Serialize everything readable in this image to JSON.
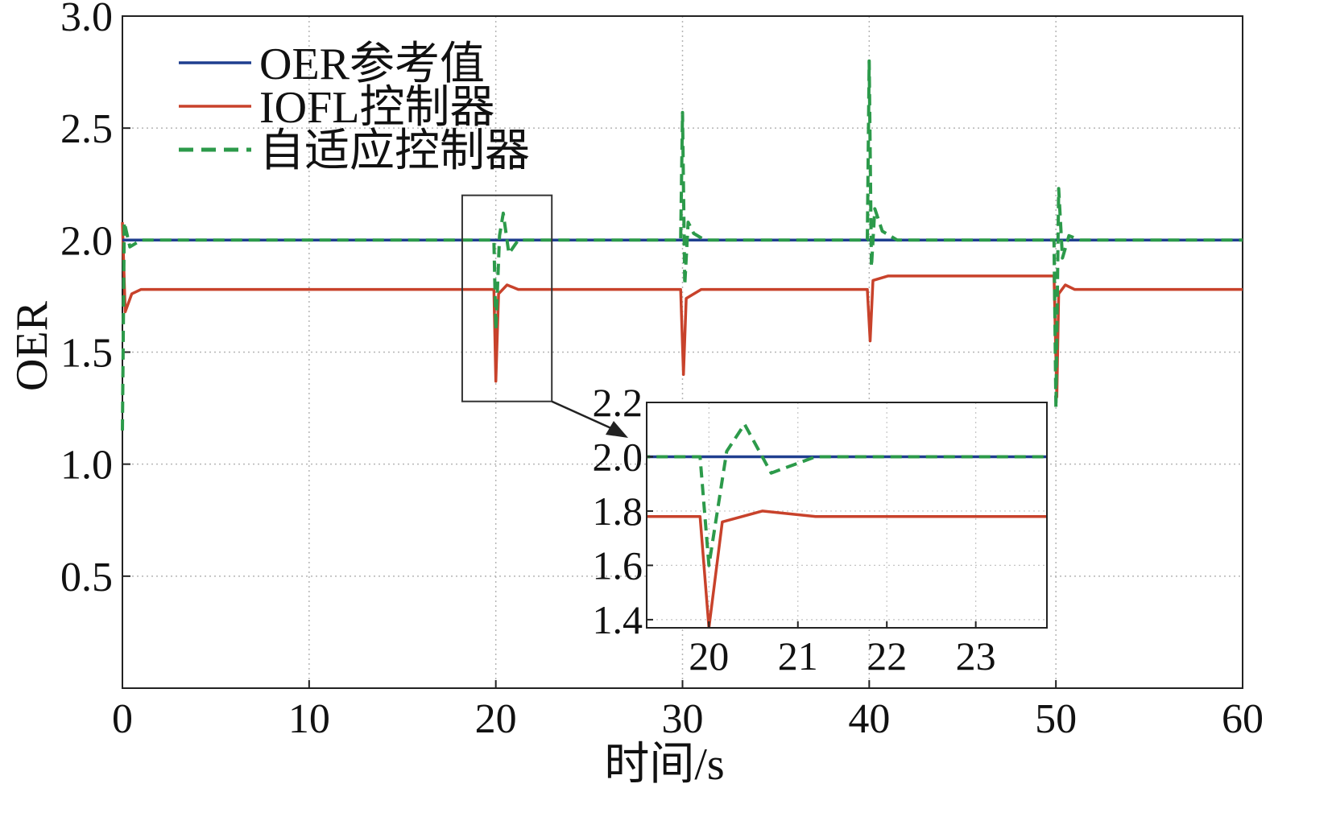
{
  "chart_data": {
    "type": "line",
    "title": "",
    "xlabel": "时间/s",
    "ylabel": "OER",
    "xlim": [
      0,
      60
    ],
    "ylim": [
      0,
      3.0
    ],
    "xticks": [
      0,
      10,
      20,
      30,
      40,
      50,
      60
    ],
    "yticks": [
      0.5,
      1.0,
      1.5,
      2.0,
      2.5,
      3.0
    ],
    "ytick_labels": [
      "0.5",
      "1.0",
      "1.5",
      "2.0",
      "2.5",
      "3.0"
    ],
    "grid": true,
    "legend_position": "top-left",
    "series": [
      {
        "name": "OER参考值",
        "color": "#1f3f8f",
        "style": "solid",
        "points": [
          [
            0,
            2.0
          ],
          [
            60,
            2.0
          ]
        ]
      },
      {
        "name": "IOFL控制器",
        "color": "#c8422b",
        "style": "solid",
        "points": [
          [
            0,
            2.08
          ],
          [
            0.15,
            1.68
          ],
          [
            0.5,
            1.76
          ],
          [
            1,
            1.78
          ],
          [
            19.9,
            1.78
          ],
          [
            20.0,
            1.37
          ],
          [
            20.15,
            1.76
          ],
          [
            20.6,
            1.8
          ],
          [
            21.2,
            1.78
          ],
          [
            29.9,
            1.78
          ],
          [
            30.05,
            1.4
          ],
          [
            30.2,
            1.74
          ],
          [
            31,
            1.78
          ],
          [
            39.9,
            1.78
          ],
          [
            40.05,
            1.55
          ],
          [
            40.2,
            1.82
          ],
          [
            41,
            1.84
          ],
          [
            49.9,
            1.84
          ],
          [
            50.05,
            1.3
          ],
          [
            50.15,
            1.76
          ],
          [
            50.5,
            1.8
          ],
          [
            51,
            1.78
          ],
          [
            60,
            1.78
          ]
        ]
      },
      {
        "name": "自适应控制器",
        "color": "#2c9a4a",
        "style": "dashed",
        "points": [
          [
            0,
            1.15
          ],
          [
            0.1,
            2.08
          ],
          [
            0.4,
            1.97
          ],
          [
            1,
            2.0
          ],
          [
            19.9,
            2.0
          ],
          [
            20.0,
            1.6
          ],
          [
            20.2,
            2.02
          ],
          [
            20.4,
            2.12
          ],
          [
            20.7,
            1.94
          ],
          [
            21.2,
            2.0
          ],
          [
            29.9,
            2.0
          ],
          [
            30.0,
            2.57
          ],
          [
            30.12,
            1.8
          ],
          [
            30.3,
            2.08
          ],
          [
            30.6,
            2.03
          ],
          [
            31.2,
            2.0
          ],
          [
            39.9,
            2.0
          ],
          [
            40.0,
            2.8
          ],
          [
            40.12,
            1.88
          ],
          [
            40.3,
            2.14
          ],
          [
            40.7,
            2.04
          ],
          [
            41.5,
            2.0
          ],
          [
            49.9,
            2.0
          ],
          [
            50.0,
            1.25
          ],
          [
            50.15,
            2.23
          ],
          [
            50.35,
            1.92
          ],
          [
            50.7,
            2.02
          ],
          [
            51.3,
            2.0
          ],
          [
            60,
            2.0
          ]
        ]
      }
    ],
    "inset": {
      "xlim": [
        19.3,
        23.8
      ],
      "ylim": [
        1.37,
        2.2
      ],
      "xticks": [
        20,
        21,
        22,
        23
      ],
      "yticks": [
        1.4,
        1.6,
        1.8,
        2.0,
        2.2
      ],
      "ytick_labels": [
        "1.4",
        "1.6",
        "1.8",
        "2.0",
        "2.2"
      ],
      "zoom_region": {
        "x": [
          18.2,
          23.0
        ],
        "y": [
          1.28,
          2.2
        ]
      }
    }
  }
}
